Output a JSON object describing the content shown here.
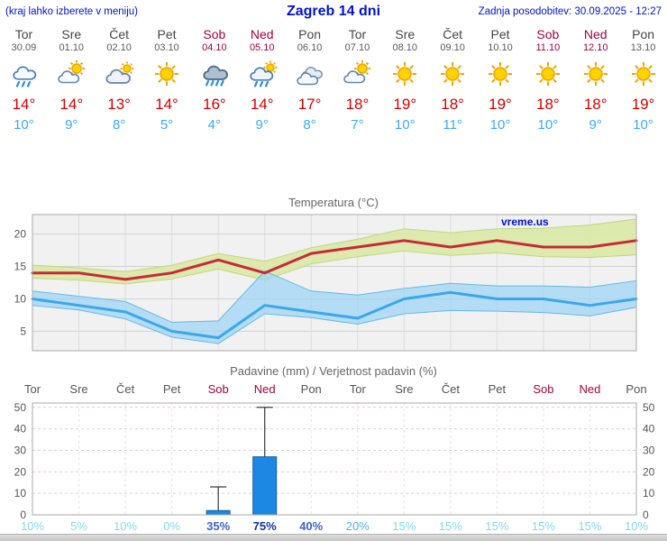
{
  "header": {
    "left_note": "(kraj lahko izberete v meniju)",
    "title": "Zagreb 14 dni",
    "updated": "Zadnja posodobitev: 30.09.2025 - 12:27"
  },
  "colors": {
    "accent_blue": "#0013cc",
    "weekend_red": "#a50041",
    "weekday_gray": "#555555",
    "temp_max_red": "#c82936",
    "temp_min_blue": "#3aa7ea",
    "bar_blue": "#1d87e4"
  },
  "days": [
    {
      "name": "Tor",
      "date": "30.09",
      "weekend": false,
      "icon": "rain",
      "tmax": "14°",
      "tmin": "10°"
    },
    {
      "name": "Sre",
      "date": "01.10",
      "weekend": false,
      "icon": "partly-cloudy",
      "tmax": "14°",
      "tmin": "9°"
    },
    {
      "name": "Čet",
      "date": "02.10",
      "weekend": false,
      "icon": "mostly-cloudy",
      "tmax": "13°",
      "tmin": "8°"
    },
    {
      "name": "Pet",
      "date": "03.10",
      "weekend": false,
      "icon": "sunny",
      "tmax": "14°",
      "tmin": "5°"
    },
    {
      "name": "Sob",
      "date": "04.10",
      "weekend": true,
      "icon": "heavy-rain",
      "tmax": "16°",
      "tmin": "4°"
    },
    {
      "name": "Ned",
      "date": "05.10",
      "weekend": true,
      "icon": "sun-rain",
      "tmax": "14°",
      "tmin": "9°"
    },
    {
      "name": "Pon",
      "date": "06.10",
      "weekend": false,
      "icon": "cloudy",
      "tmax": "17°",
      "tmin": "8°"
    },
    {
      "name": "Tor",
      "date": "07.10",
      "weekend": false,
      "icon": "partly-cloudy",
      "tmax": "18°",
      "tmin": "7°"
    },
    {
      "name": "Sre",
      "date": "08.10",
      "weekend": false,
      "icon": "sunny",
      "tmax": "19°",
      "tmin": "10°"
    },
    {
      "name": "Čet",
      "date": "09.10",
      "weekend": false,
      "icon": "sunny",
      "tmax": "18°",
      "tmin": "11°"
    },
    {
      "name": "Pet",
      "date": "10.10",
      "weekend": false,
      "icon": "sunny",
      "tmax": "19°",
      "tmin": "10°"
    },
    {
      "name": "Sob",
      "date": "11.10",
      "weekend": true,
      "icon": "sunny",
      "tmax": "18°",
      "tmin": "10°"
    },
    {
      "name": "Ned",
      "date": "12.10",
      "weekend": true,
      "icon": "sunny",
      "tmax": "18°",
      "tmin": "9°"
    },
    {
      "name": "Pon",
      "date": "13.10",
      "weekend": false,
      "icon": "sunny",
      "tmax": "19°",
      "tmin": "10°"
    }
  ],
  "chart_data": [
    {
      "type": "line",
      "title": "Temperatura (°C)",
      "watermark": "vreme.us",
      "ylim": [
        2,
        23
      ],
      "yticks": [
        5,
        10,
        15,
        20
      ],
      "grid": true,
      "series": [
        {
          "name": "max temperature",
          "color": "#c82936",
          "values": [
            14,
            14,
            13,
            14,
            16,
            14,
            17,
            18,
            19,
            18,
            19,
            18,
            18,
            19
          ]
        },
        {
          "name": "min temperature",
          "color": "#3aa7ea",
          "values": [
            10,
            9,
            8,
            5,
            4,
            9,
            8,
            7,
            10,
            11,
            10,
            10,
            9,
            10
          ]
        }
      ],
      "bands": [
        {
          "name": "max-range",
          "fill": "#d9e9a6",
          "stroke": "#c2d67e",
          "opacity": 0.9,
          "upper": [
            15.2,
            14.8,
            14.2,
            15.2,
            17.0,
            15.8,
            17.9,
            19.2,
            20.8,
            20.2,
            20.8,
            20.9,
            21.4,
            22.3
          ],
          "lower": [
            13.2,
            12.9,
            12.3,
            13.1,
            14.6,
            12.9,
            15.4,
            16.5,
            17.4,
            16.7,
            17.1,
            16.5,
            16.4,
            16.8
          ]
        },
        {
          "name": "min-range",
          "fill": "#9fd4f5",
          "stroke": "#64b9ea",
          "opacity": 0.75,
          "upper": [
            11.2,
            10.4,
            9.6,
            6.4,
            6.6,
            14.3,
            11.2,
            10.6,
            11.6,
            12.4,
            12.0,
            12.0,
            11.8,
            12.8
          ],
          "lower": [
            9.0,
            8.3,
            6.9,
            4.1,
            3.1,
            7.7,
            7.1,
            6.1,
            7.7,
            8.2,
            8.1,
            7.9,
            7.4,
            8.7
          ]
        }
      ]
    },
    {
      "type": "bar",
      "title": "Padavine (mm) / Verjetnost padavin (%)",
      "categories": [
        "Tor",
        "Sre",
        "Čet",
        "Pet",
        "Sob",
        "Ned",
        "Pon",
        "Tor",
        "Sre",
        "Čet",
        "Pet",
        "Sob",
        "Ned",
        "Pon"
      ],
      "weekend_idx": [
        4,
        5,
        11,
        12
      ],
      "values": [
        0,
        0,
        0,
        0,
        2,
        27,
        0,
        0,
        0,
        0,
        0,
        0,
        0,
        0
      ],
      "whisker_high": [
        0,
        0,
        0,
        0,
        13,
        50,
        0,
        0,
        0,
        0,
        0,
        0,
        0,
        0
      ],
      "probability": [
        10,
        5,
        10,
        0,
        35,
        75,
        40,
        20,
        15,
        15,
        15,
        15,
        15,
        10
      ],
      "prob_suffix": "%",
      "ylim": [
        0,
        52
      ],
      "yticks": [
        0,
        10,
        20,
        30,
        40,
        50
      ],
      "bar_color": "#1d87e4",
      "bar_stroke": "#0f5ea8",
      "prob_color_tiers": [
        {
          "min": 60,
          "color": "#16329f",
          "bold": true
        },
        {
          "min": 30,
          "color": "#3c63c6",
          "bold": true
        },
        {
          "min": 20,
          "color": "#59aee2",
          "bold": false
        },
        {
          "min": 0,
          "color": "#80d9f2",
          "bold": false
        }
      ]
    }
  ]
}
